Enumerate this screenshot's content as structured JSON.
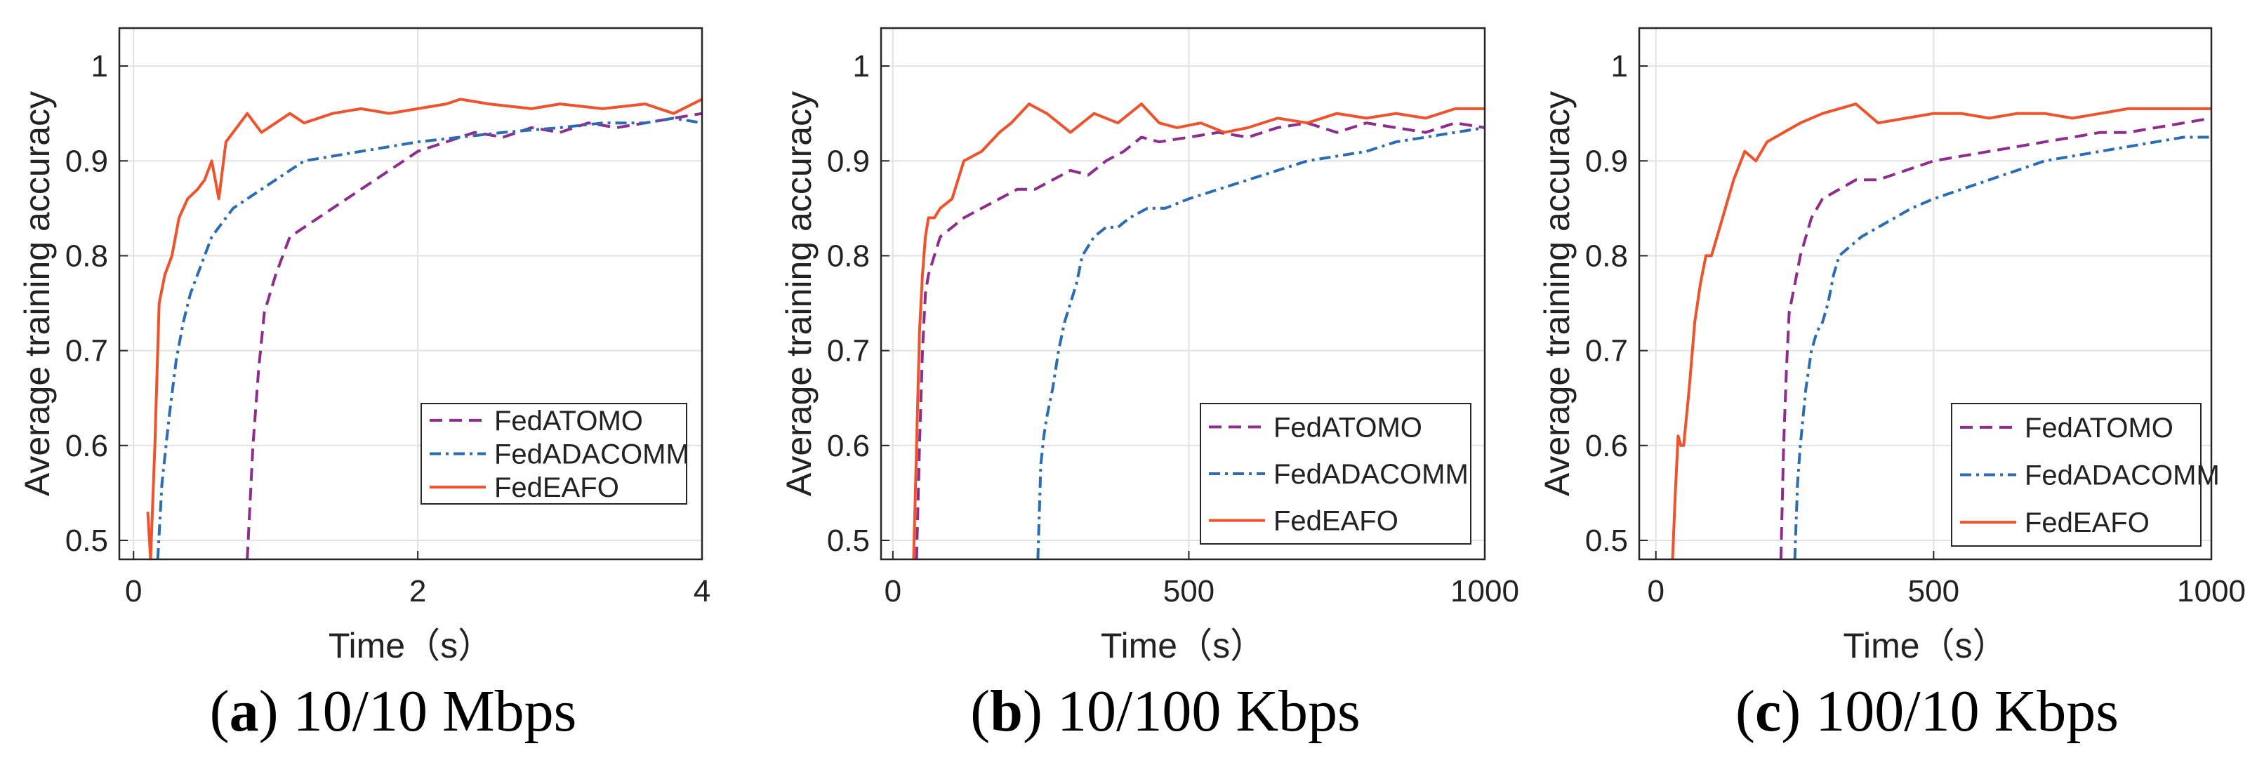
{
  "colors": {
    "FedATOMO": "#8e2d8e",
    "FedADACOMM": "#2a6db5",
    "FedEAFO": "#f0532c",
    "grid": "#e2e2e2",
    "axis": "#262626"
  },
  "chart_data": [
    {
      "type": "line",
      "caption_letter": "a",
      "caption_text": "10/10 Mbps",
      "xlabel": "Time（s）",
      "ylabel": "Average training accuracy",
      "xlim": [
        -0.1,
        4
      ],
      "ylim": [
        0.48,
        1.04
      ],
      "xticks": [
        0,
        2,
        4
      ],
      "xtick_labels": [
        "0",
        "2",
        "4"
      ],
      "yticks": [
        0.5,
        0.6,
        0.7,
        0.8,
        0.9,
        1.0
      ],
      "ytick_labels": [
        "0.5",
        "0.6",
        "0.7",
        "0.8",
        "0.9",
        "1"
      ],
      "legend": [
        "FedATOMO",
        "FedADACOMM",
        "FedEAFO"
      ],
      "legend_position": "bottom-right",
      "series": [
        {
          "name": "FedATOMO",
          "style": "dashed",
          "x": [
            0.8,
            0.84,
            0.88,
            0.92,
            0.96,
            1.0,
            1.05,
            1.1,
            1.2,
            1.3,
            1.4,
            1.5,
            1.6,
            1.7,
            1.8,
            1.9,
            2.0,
            2.2,
            2.4,
            2.6,
            2.8,
            3.0,
            3.2,
            3.4,
            3.6,
            3.8,
            4.0
          ],
          "y": [
            0.48,
            0.6,
            0.68,
            0.74,
            0.76,
            0.78,
            0.8,
            0.82,
            0.83,
            0.84,
            0.85,
            0.86,
            0.87,
            0.88,
            0.89,
            0.9,
            0.91,
            0.92,
            0.93,
            0.925,
            0.935,
            0.93,
            0.94,
            0.935,
            0.94,
            0.945,
            0.95
          ]
        },
        {
          "name": "FedADACOMM",
          "style": "dashdot",
          "x": [
            0.17,
            0.2,
            0.25,
            0.3,
            0.35,
            0.4,
            0.45,
            0.5,
            0.55,
            0.6,
            0.7,
            0.8,
            0.9,
            1.0,
            1.2,
            1.4,
            1.6,
            1.8,
            2.0,
            2.3,
            2.6,
            3.0,
            3.3,
            3.6,
            3.8,
            4.0
          ],
          "y": [
            0.48,
            0.56,
            0.63,
            0.69,
            0.73,
            0.76,
            0.78,
            0.8,
            0.82,
            0.83,
            0.85,
            0.86,
            0.87,
            0.88,
            0.9,
            0.905,
            0.91,
            0.915,
            0.92,
            0.925,
            0.93,
            0.935,
            0.94,
            0.94,
            0.945,
            0.94
          ]
        },
        {
          "name": "FedEAFO",
          "style": "solid",
          "x": [
            0.1,
            0.12,
            0.15,
            0.18,
            0.22,
            0.27,
            0.32,
            0.38,
            0.45,
            0.5,
            0.55,
            0.6,
            0.65,
            0.7,
            0.75,
            0.8,
            0.9,
            1.0,
            1.1,
            1.2,
            1.4,
            1.6,
            1.8,
            2.0,
            2.2,
            2.3,
            2.5,
            2.8,
            3.0,
            3.3,
            3.6,
            3.8,
            4.0
          ],
          "y": [
            0.53,
            0.48,
            0.6,
            0.75,
            0.78,
            0.8,
            0.84,
            0.86,
            0.87,
            0.88,
            0.9,
            0.86,
            0.92,
            0.93,
            0.94,
            0.95,
            0.93,
            0.94,
            0.95,
            0.94,
            0.95,
            0.955,
            0.95,
            0.955,
            0.96,
            0.965,
            0.96,
            0.955,
            0.96,
            0.955,
            0.96,
            0.95,
            0.965
          ]
        }
      ]
    },
    {
      "type": "line",
      "caption_letter": "b",
      "caption_text": "10/100 Kbps",
      "xlabel": "Time（s）",
      "ylabel": "Average training accuracy",
      "xlim": [
        -20,
        1000
      ],
      "ylim": [
        0.48,
        1.04
      ],
      "xticks": [
        0,
        500,
        1000
      ],
      "xtick_labels": [
        "0",
        "500",
        "1000"
      ],
      "yticks": [
        0.5,
        0.6,
        0.7,
        0.8,
        0.9,
        1.0
      ],
      "ytick_labels": [
        "0.5",
        "0.6",
        "0.7",
        "0.8",
        "0.9",
        "1"
      ],
      "legend": [
        "FedATOMO",
        "FedADACOMM",
        "FedEAFO"
      ],
      "legend_position": "bottom-right",
      "series": [
        {
          "name": "FedATOMO",
          "style": "dashed",
          "x": [
            40,
            45,
            50,
            55,
            60,
            70,
            80,
            100,
            120,
            150,
            180,
            210,
            240,
            270,
            300,
            330,
            360,
            390,
            420,
            450,
            500,
            550,
            600,
            650,
            700,
            750,
            800,
            850,
            900,
            950,
            1000
          ],
          "y": [
            0.48,
            0.6,
            0.7,
            0.76,
            0.78,
            0.8,
            0.82,
            0.83,
            0.84,
            0.85,
            0.86,
            0.87,
            0.87,
            0.88,
            0.89,
            0.885,
            0.9,
            0.91,
            0.925,
            0.92,
            0.925,
            0.93,
            0.925,
            0.935,
            0.94,
            0.93,
            0.94,
            0.935,
            0.93,
            0.94,
            0.935
          ]
        },
        {
          "name": "FedADACOMM",
          "style": "dashdot",
          "x": [
            245,
            250,
            255,
            260,
            270,
            280,
            290,
            300,
            310,
            320,
            340,
            360,
            380,
            400,
            430,
            460,
            500,
            550,
            600,
            650,
            700,
            750,
            800,
            850,
            900,
            950,
            1000
          ],
          "y": [
            0.48,
            0.58,
            0.61,
            0.63,
            0.66,
            0.7,
            0.73,
            0.75,
            0.77,
            0.8,
            0.82,
            0.83,
            0.83,
            0.84,
            0.85,
            0.85,
            0.86,
            0.87,
            0.88,
            0.89,
            0.9,
            0.905,
            0.91,
            0.92,
            0.925,
            0.93,
            0.935
          ]
        },
        {
          "name": "FedEAFO",
          "style": "solid",
          "x": [
            35,
            40,
            45,
            50,
            55,
            60,
            70,
            80,
            100,
            120,
            150,
            180,
            200,
            230,
            260,
            300,
            340,
            380,
            420,
            450,
            480,
            520,
            560,
            600,
            650,
            700,
            750,
            800,
            850,
            900,
            950,
            1000
          ],
          "y": [
            0.48,
            0.6,
            0.72,
            0.78,
            0.82,
            0.84,
            0.84,
            0.85,
            0.86,
            0.9,
            0.91,
            0.93,
            0.94,
            0.96,
            0.95,
            0.93,
            0.95,
            0.94,
            0.96,
            0.94,
            0.935,
            0.94,
            0.93,
            0.935,
            0.945,
            0.94,
            0.95,
            0.945,
            0.95,
            0.945,
            0.955,
            0.955
          ]
        }
      ]
    },
    {
      "type": "line",
      "caption_letter": "c",
      "caption_text": "100/10 Kbps",
      "xlabel": "Time（s）",
      "ylabel": "Average training accuracy",
      "xlim": [
        -30,
        1000
      ],
      "ylim": [
        0.48,
        1.04
      ],
      "xticks": [
        0,
        500,
        1000
      ],
      "xtick_labels": [
        "0",
        "500",
        "1000"
      ],
      "yticks": [
        0.5,
        0.6,
        0.7,
        0.8,
        0.9,
        1.0
      ],
      "ytick_labels": [
        "0.5",
        "0.6",
        "0.7",
        "0.8",
        "0.9",
        "1"
      ],
      "legend": [
        "FedATOMO",
        "FedADACOMM",
        "FedEAFO"
      ],
      "legend_position": "bottom-right",
      "series": [
        {
          "name": "FedATOMO",
          "style": "dashed",
          "x": [
            225,
            230,
            235,
            240,
            250,
            260,
            270,
            280,
            300,
            330,
            360,
            400,
            450,
            500,
            550,
            600,
            650,
            700,
            750,
            800,
            850,
            900,
            950,
            1000
          ],
          "y": [
            0.48,
            0.6,
            0.68,
            0.74,
            0.77,
            0.8,
            0.82,
            0.84,
            0.86,
            0.87,
            0.88,
            0.88,
            0.89,
            0.9,
            0.905,
            0.91,
            0.915,
            0.92,
            0.925,
            0.93,
            0.93,
            0.935,
            0.94,
            0.945
          ]
        },
        {
          "name": "FedADACOMM",
          "style": "dashdot",
          "x": [
            250,
            255,
            260,
            265,
            270,
            280,
            290,
            300,
            310,
            320,
            330,
            350,
            370,
            400,
            430,
            460,
            500,
            550,
            600,
            650,
            700,
            750,
            800,
            850,
            900,
            950,
            1000
          ],
          "y": [
            0.48,
            0.56,
            0.6,
            0.63,
            0.66,
            0.7,
            0.72,
            0.73,
            0.75,
            0.78,
            0.8,
            0.81,
            0.82,
            0.83,
            0.84,
            0.85,
            0.86,
            0.87,
            0.88,
            0.89,
            0.9,
            0.905,
            0.91,
            0.915,
            0.92,
            0.925,
            0.925
          ]
        },
        {
          "name": "FedEAFO",
          "style": "solid",
          "x": [
            30,
            35,
            40,
            45,
            50,
            60,
            70,
            80,
            90,
            100,
            110,
            120,
            130,
            140,
            160,
            180,
            200,
            230,
            260,
            300,
            330,
            360,
            400,
            450,
            500,
            550,
            600,
            650,
            700,
            750,
            800,
            850,
            900,
            950,
            1000
          ],
          "y": [
            0.48,
            0.55,
            0.61,
            0.6,
            0.6,
            0.66,
            0.73,
            0.77,
            0.8,
            0.8,
            0.82,
            0.84,
            0.86,
            0.88,
            0.91,
            0.9,
            0.92,
            0.93,
            0.94,
            0.95,
            0.955,
            0.96,
            0.94,
            0.945,
            0.95,
            0.95,
            0.945,
            0.95,
            0.95,
            0.945,
            0.95,
            0.955,
            0.955,
            0.955,
            0.955
          ]
        }
      ]
    }
  ]
}
